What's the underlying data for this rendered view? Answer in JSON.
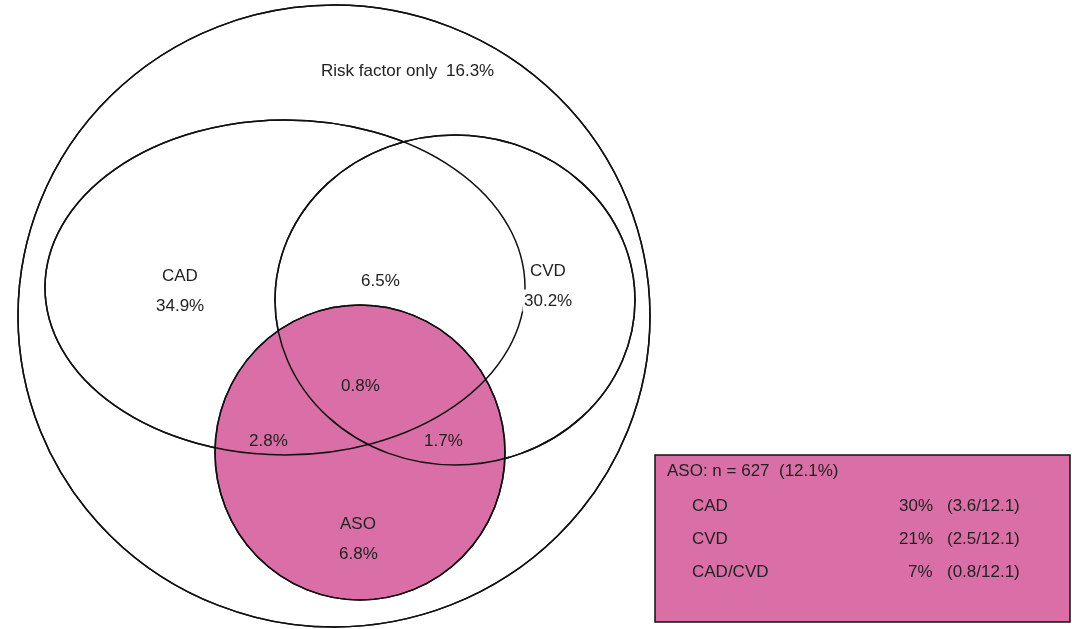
{
  "chart_data": {
    "type": "other",
    "categories": [
      "Risk factor only",
      "CAD",
      "CVD",
      "ASO"
    ],
    "values": [
      16.3,
      34.9,
      30.2,
      6.8
    ],
    "value_labels": [
      "16.3%",
      "34.9%",
      "30.2%",
      "6.8%"
    ],
    "colors": [
      "#ffffff",
      "#ffffff",
      "#ffffff",
      "#d96fa6"
    ],
    "annotations": [
      "6.5%",
      "0.8%",
      "2.8%",
      "1.7%",
      "ASO: n = 627  (12.1%)",
      "CAD",
      "30%",
      "(3.6/12.1)",
      "CVD",
      "21%",
      "(2.5/12.1)",
      "CAD/CVD",
      "7%",
      "(0.8/12.1)"
    ]
  }
}
